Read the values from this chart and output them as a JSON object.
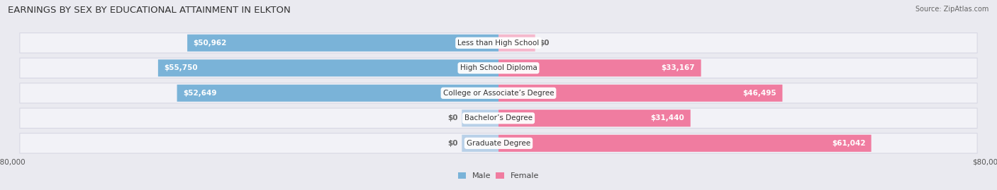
{
  "title": "EARNINGS BY SEX BY EDUCATIONAL ATTAINMENT IN ELKTON",
  "source": "Source: ZipAtlas.com",
  "categories": [
    "Less than High School",
    "High School Diploma",
    "College or Associate’s Degree",
    "Bachelor’s Degree",
    "Graduate Degree"
  ],
  "male_values": [
    50962,
    55750,
    52649,
    0,
    0
  ],
  "female_values": [
    0,
    33167,
    46495,
    31440,
    61042
  ],
  "male_color": "#7ab3d8",
  "female_color": "#f07ca0",
  "male_label_color": "#ffffff",
  "female_label_color": "#ffffff",
  "male_zero_color": "#b8d0e8",
  "female_zero_color": "#f5b8cc",
  "axis_max": 80000,
  "bg_color": "#eaeaf0",
  "row_bg_color": "#f2f2f7",
  "row_border_color": "#d8d8e4",
  "title_fontsize": 9.5,
  "source_fontsize": 7,
  "label_fontsize": 7.5,
  "tick_fontsize": 7.5,
  "legend_fontsize": 8,
  "figsize": [
    14.06,
    2.69
  ],
  "dpi": 100
}
